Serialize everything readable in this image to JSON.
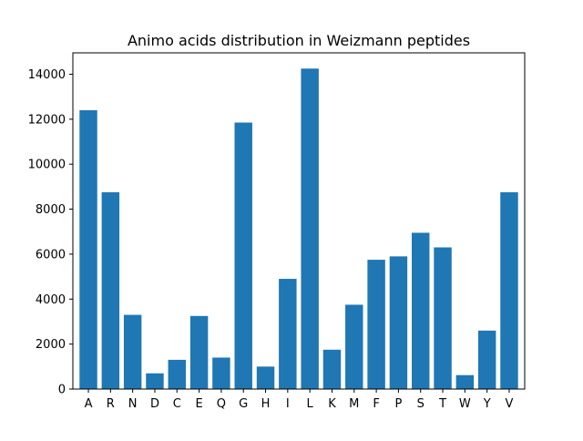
{
  "chart_data": {
    "type": "bar",
    "title": "Animo acids distribution in Weizmann peptides",
    "xlabel": "",
    "ylabel": "",
    "categories": [
      "A",
      "R",
      "N",
      "D",
      "C",
      "E",
      "Q",
      "G",
      "H",
      "I",
      "L",
      "K",
      "M",
      "F",
      "P",
      "S",
      "T",
      "W",
      "Y",
      "V"
    ],
    "values": [
      12400,
      8750,
      3300,
      700,
      1300,
      3250,
      1400,
      11850,
      1000,
      4900,
      14250,
      1750,
      3750,
      5750,
      5900,
      6950,
      6300,
      620,
      2600,
      8750
    ],
    "ylim": [
      0,
      14950
    ],
    "yticks": [
      0,
      2000,
      4000,
      6000,
      8000,
      10000,
      12000,
      14000
    ],
    "grid": false,
    "legend": "none",
    "colors": {
      "bar": "#1f77b4",
      "axis": "#000000",
      "background": "#ffffff"
    }
  }
}
